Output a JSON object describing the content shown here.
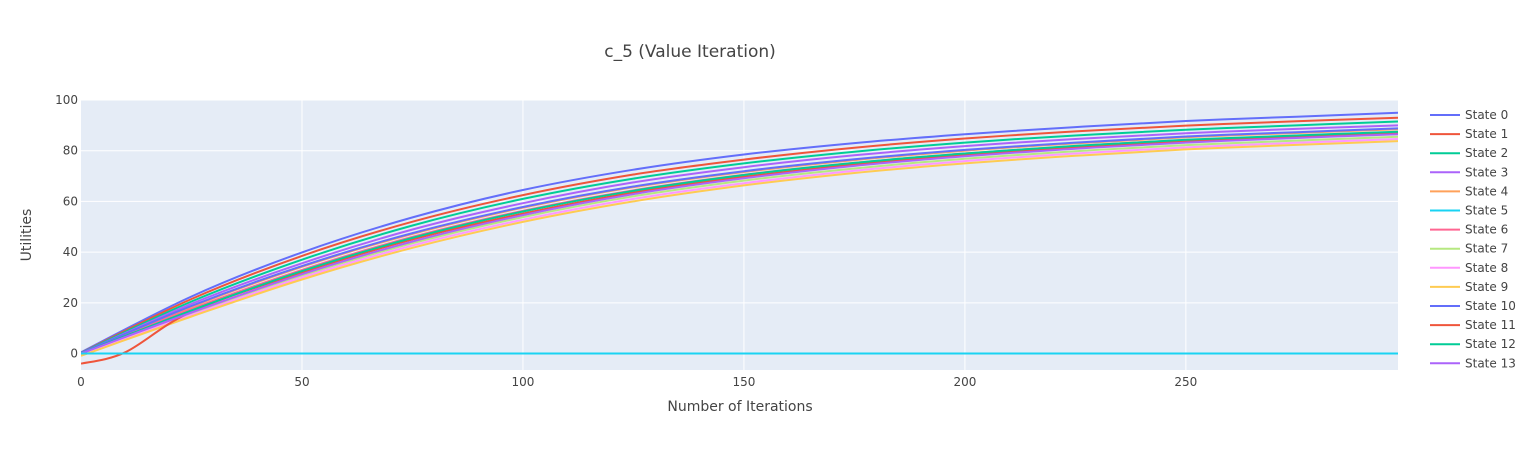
{
  "chart_data": {
    "type": "line",
    "title": "c_5 (Value Iteration)",
    "xlabel": "Number of Iterations",
    "ylabel": "Utilities",
    "xlim": [
      0,
      298
    ],
    "ylim": [
      -6.5,
      100
    ],
    "x_ticks": [
      0,
      50,
      100,
      150,
      200,
      250
    ],
    "y_ticks": [
      0,
      20,
      40,
      60,
      80,
      100
    ],
    "grid": true,
    "legend_position": "right",
    "background": "#E5ECF6",
    "series": [
      {
        "name": "State 0",
        "color": "#636EFA",
        "x": [
          0,
          25,
          50,
          75,
          100,
          125,
          150,
          175,
          200,
          225,
          250,
          275,
          298
        ],
        "values": [
          0.5,
          22.5,
          39.9,
          53.7,
          64.5,
          72.5,
          78.5,
          83.0,
          86.5,
          89.3,
          91.7,
          93.4,
          95.0
        ]
      },
      {
        "name": "State 1",
        "color": "#EF553B",
        "x": [
          0,
          25,
          50,
          75,
          100,
          125,
          150,
          175,
          200,
          225,
          250,
          275,
          298
        ],
        "values": [
          0.3,
          21.5,
          38.5,
          52.0,
          62.5,
          70.6,
          76.5,
          81.2,
          84.8,
          87.6,
          89.9,
          91.6,
          93.0
        ]
      },
      {
        "name": "State 2",
        "color": "#00CC96",
        "x": [
          0,
          25,
          50,
          75,
          100,
          125,
          150,
          175,
          200,
          225,
          250,
          275,
          298
        ],
        "values": [
          0.2,
          20.5,
          37.0,
          50.5,
          61.0,
          69.0,
          75.0,
          79.6,
          83.2,
          86.0,
          88.3,
          90.0,
          91.5
        ]
      },
      {
        "name": "State 3",
        "color": "#AB63FA",
        "x": [
          0,
          25,
          50,
          75,
          100,
          125,
          150,
          175,
          200,
          225,
          250,
          275,
          298
        ],
        "values": [
          0.0,
          19.6,
          35.6,
          48.9,
          59.3,
          67.5,
          73.5,
          78.2,
          81.8,
          84.6,
          86.9,
          88.6,
          90.0
        ]
      },
      {
        "name": "State 4",
        "color": "#FFA15A",
        "x": [
          0,
          25,
          50,
          75,
          100,
          125,
          150,
          175,
          200,
          225,
          250,
          275,
          298
        ],
        "values": [
          -0.5,
          18.4,
          34.2,
          47.2,
          57.5,
          65.6,
          71.6,
          76.3,
          80.0,
          82.9,
          85.3,
          87.0,
          88.5
        ]
      },
      {
        "name": "State 5",
        "color": "#19D3F3",
        "x": [
          0,
          298
        ],
        "values": [
          0.0,
          0.0
        ]
      },
      {
        "name": "State 6",
        "color": "#FF6692",
        "x": [
          0,
          25,
          50,
          75,
          100,
          125,
          150,
          175,
          200,
          225,
          250,
          275,
          298
        ],
        "values": [
          0.0,
          17.6,
          33.0,
          46.0,
          56.3,
          64.4,
          70.5,
          75.2,
          78.9,
          81.8,
          84.2,
          85.8,
          87.2
        ]
      },
      {
        "name": "State 7",
        "color": "#B6E880",
        "x": [
          0,
          25,
          50,
          75,
          100,
          125,
          150,
          175,
          200,
          225,
          250,
          275,
          298
        ],
        "values": [
          -0.8,
          15.8,
          30.8,
          43.5,
          53.8,
          62.0,
          68.2,
          73.0,
          76.8,
          79.8,
          82.2,
          84.0,
          85.5
        ]
      },
      {
        "name": "State 8",
        "color": "#FF97FF",
        "x": [
          0,
          25,
          50,
          75,
          100,
          125,
          150,
          175,
          200,
          225,
          250,
          275,
          298
        ],
        "values": [
          -0.6,
          15.2,
          30.0,
          42.6,
          52.8,
          61.0,
          67.2,
          72.1,
          75.9,
          78.9,
          81.3,
          83.1,
          84.6
        ]
      },
      {
        "name": "State 9",
        "color": "#FECB52",
        "x": [
          0,
          25,
          50,
          75,
          100,
          125,
          150,
          175,
          200,
          225,
          250,
          275,
          298
        ],
        "values": [
          -0.9,
          14.6,
          29.2,
          41.7,
          51.9,
          60.0,
          66.3,
          71.2,
          75.0,
          78.0,
          80.5,
          82.3,
          83.8
        ]
      },
      {
        "name": "State 10",
        "color": "#636EFA",
        "x": [
          0,
          25,
          50,
          75,
          100,
          125,
          150,
          175,
          200,
          225,
          250,
          275,
          298
        ],
        "values": [
          0.2,
          18.8,
          34.5,
          47.5,
          57.8,
          65.9,
          71.9,
          76.6,
          80.3,
          83.2,
          85.6,
          87.3,
          88.8
        ]
      },
      {
        "name": "State 11",
        "color": "#EF553B",
        "x": [
          0,
          10,
          25,
          50,
          75,
          100,
          125,
          150,
          175,
          200,
          225,
          250,
          275,
          298
        ],
        "values": [
          -4.0,
          0.5,
          16.5,
          32.0,
          45.0,
          55.2,
          63.5,
          69.7,
          74.5,
          78.3,
          81.2,
          83.6,
          85.4,
          86.8
        ]
      },
      {
        "name": "State 12",
        "color": "#00CC96",
        "x": [
          0,
          25,
          50,
          75,
          100,
          125,
          150,
          175,
          200,
          225,
          250,
          275,
          298
        ],
        "values": [
          0.0,
          17.0,
          32.5,
          45.6,
          56.0,
          64.2,
          70.4,
          75.2,
          78.9,
          81.9,
          84.3,
          86.0,
          87.5
        ]
      },
      {
        "name": "State 13",
        "color": "#AB63FA",
        "x": [
          0,
          25,
          50,
          75,
          100,
          125,
          150,
          175,
          200,
          225,
          250,
          275,
          298
        ],
        "values": [
          0.0,
          16.2,
          31.3,
          44.2,
          54.6,
          62.9,
          69.1,
          74.0,
          77.8,
          80.8,
          83.2,
          85.0,
          86.5
        ]
      }
    ]
  }
}
